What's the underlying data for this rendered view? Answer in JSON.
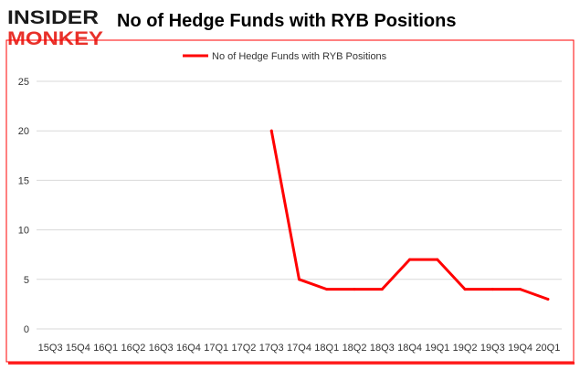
{
  "brand": {
    "line1": "INSIDER",
    "line2": "MONKEY",
    "color_dark": "#1a1a1a",
    "color_red": "#e8312a"
  },
  "colors": {
    "series": "#ff0000",
    "grid": "#d9d9d9",
    "border": "#ff0000"
  },
  "chart_data": {
    "type": "line",
    "title": "No of Hedge Funds with RYB Positions",
    "xlabel": "",
    "ylabel": "",
    "ylim": [
      0,
      25
    ],
    "yticks": [
      0,
      5,
      10,
      15,
      20,
      25
    ],
    "grid": true,
    "legend_position": "top-center",
    "categories": [
      "15Q3",
      "15Q4",
      "16Q1",
      "16Q2",
      "16Q3",
      "16Q4",
      "17Q1",
      "17Q2",
      "17Q3",
      "17Q4",
      "18Q1",
      "18Q2",
      "18Q3",
      "18Q4",
      "19Q1",
      "19Q2",
      "19Q3",
      "19Q4",
      "20Q1"
    ],
    "series": [
      {
        "name": "No of Hedge Funds with RYB Positions",
        "values": [
          null,
          null,
          null,
          null,
          null,
          null,
          null,
          null,
          20,
          5,
          4,
          4,
          4,
          7,
          7,
          4,
          4,
          4,
          3
        ]
      }
    ]
  }
}
